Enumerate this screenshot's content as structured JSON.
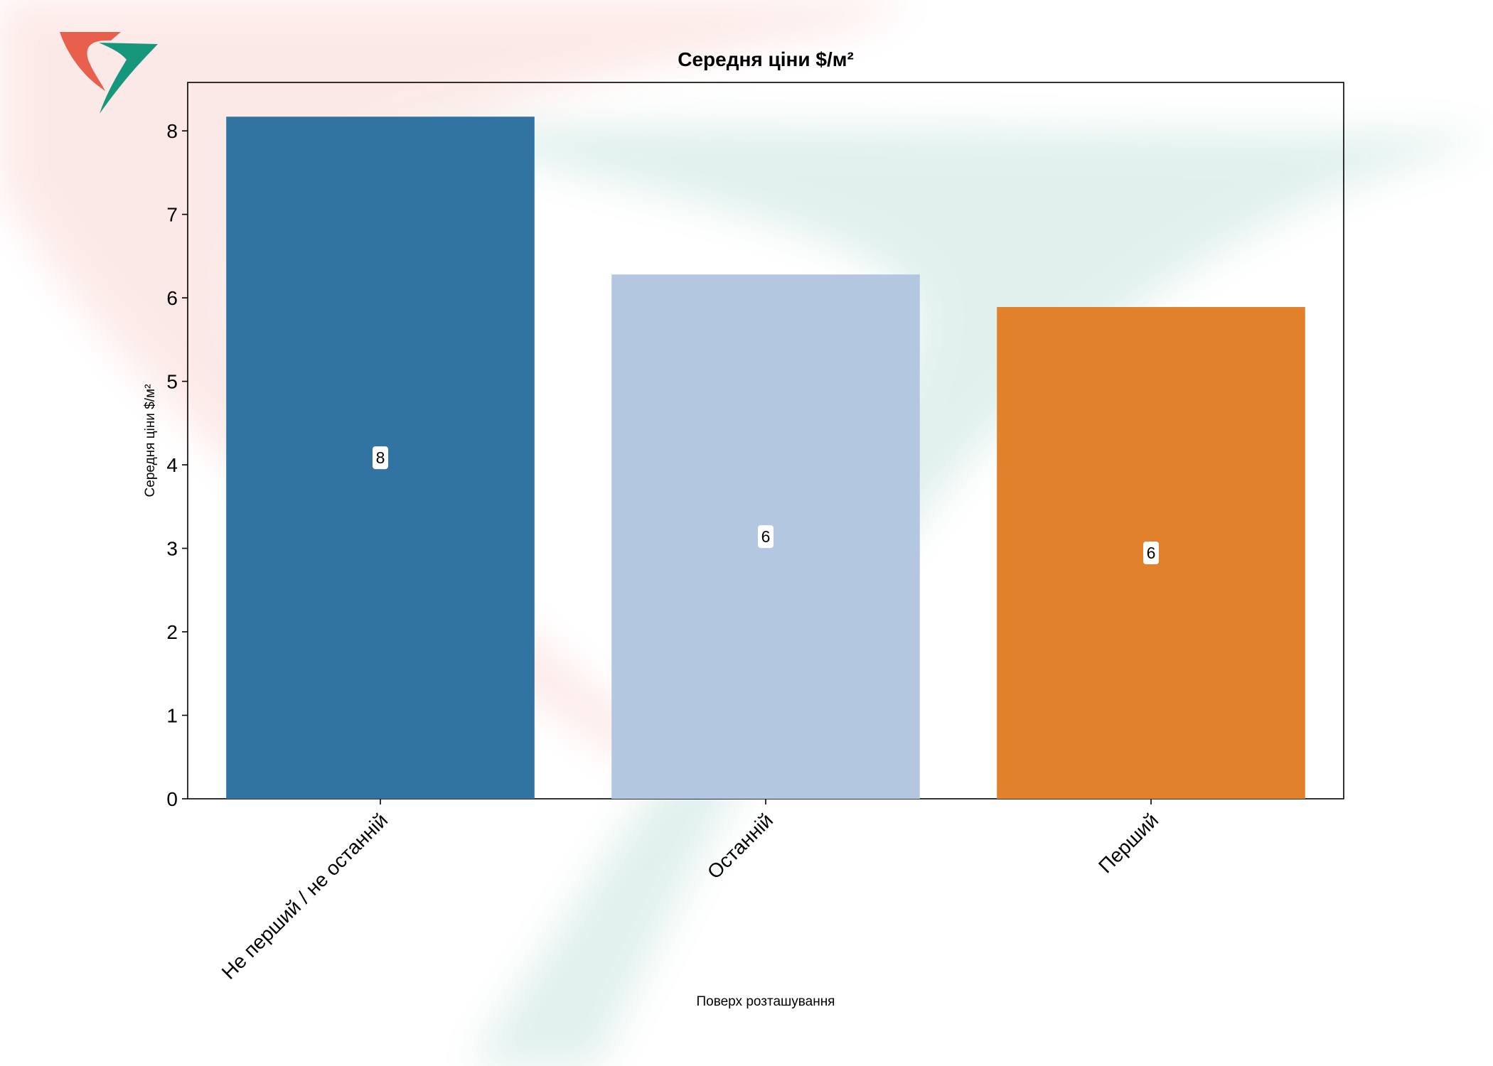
{
  "chart_data": {
    "type": "bar",
    "title": "Середня ціни $/м²",
    "xlabel": "Поверх розташування",
    "ylabel": "Середня ціни $/м²",
    "categories": [
      "Не перший / не останній",
      "Останній",
      "Перший"
    ],
    "values": [
      8.17,
      6.28,
      5.89
    ],
    "data_labels": [
      "8",
      "6",
      "6"
    ],
    "colors": [
      "#3274a1",
      "#b3c7e1",
      "#e1812c"
    ],
    "ylim": [
      0,
      8.58
    ],
    "yticks": [
      0,
      1,
      2,
      3,
      4,
      5,
      6,
      7,
      8
    ],
    "grid": false,
    "legend": "none"
  },
  "watermark": {
    "kind": "logo",
    "colors": {
      "red": "#e8604c",
      "green": "#16967a"
    }
  }
}
